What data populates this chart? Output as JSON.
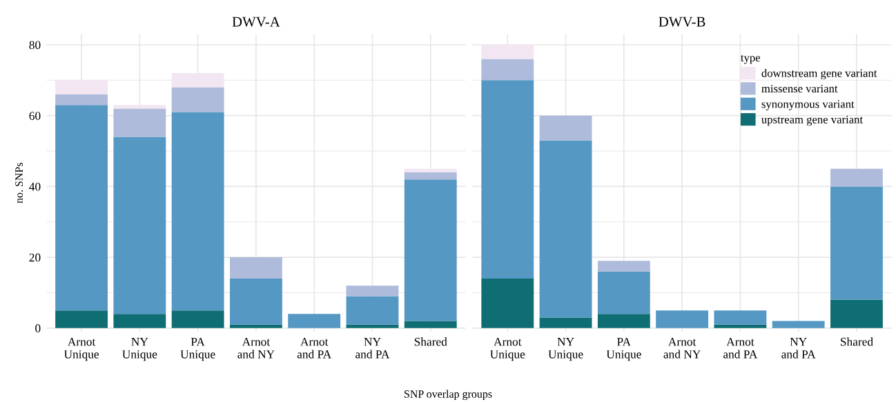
{
  "chart_data": [
    {
      "type": "bar",
      "title": "DWV-A",
      "xlabel": "SNP overlap groups",
      "ylabel": "no. SNPs",
      "stacked": true,
      "grid": true,
      "categories": [
        "Arnot\nUnique",
        "NY\nUnique",
        "PA\nUnique",
        "Arnot\nand NY",
        "Arnot\nand PA",
        "NY\nand PA",
        "Shared"
      ],
      "ylim": [
        -1,
        83
      ],
      "yticks": [
        0,
        20,
        40,
        60,
        80
      ],
      "series": [
        {
          "color": "#0f6e73",
          "values": [
            5,
            4,
            5,
            1,
            0,
            1,
            2
          ]
        },
        {
          "color": "#5598c4",
          "values": [
            58,
            50,
            56,
            13,
            4,
            8,
            40
          ]
        },
        {
          "color": "#afbbdb",
          "values": [
            3,
            8,
            7,
            6,
            0,
            3,
            2
          ]
        },
        {
          "color": "#f2e6f2",
          "values": [
            4,
            1,
            4,
            0,
            0,
            0,
            1
          ]
        }
      ]
    },
    {
      "type": "bar",
      "title": "DWV-B",
      "legend_title": "type",
      "stacked": true,
      "grid": true,
      "legend": "top right",
      "tick_labels": "x",
      "categories": [
        "Arnot\nUnique",
        "NY\nUnique",
        "PA\nUnique",
        "Arnot\nand NY",
        "Arnot\nand PA",
        "NY\nand PA",
        "Shared"
      ],
      "ylim": [
        -1,
        83
      ],
      "yticks": [
        0,
        20,
        40,
        60,
        80
      ],
      "series": [
        {
          "name": "upstream gene variant",
          "color": "#0f6e73",
          "values": [
            14,
            3,
            4,
            0,
            1,
            0,
            8
          ]
        },
        {
          "name": "synonymous variant",
          "color": "#5598c4",
          "values": [
            56,
            50,
            12,
            5,
            4,
            2,
            32
          ]
        },
        {
          "name": "missense variant",
          "color": "#afbbdb",
          "values": [
            6,
            7,
            3,
            0,
            0,
            0,
            5
          ]
        },
        {
          "name": "downstream gene variant",
          "color": "#f2e6f2",
          "values": [
            4,
            0,
            0,
            0,
            0,
            0,
            0
          ]
        }
      ]
    }
  ]
}
